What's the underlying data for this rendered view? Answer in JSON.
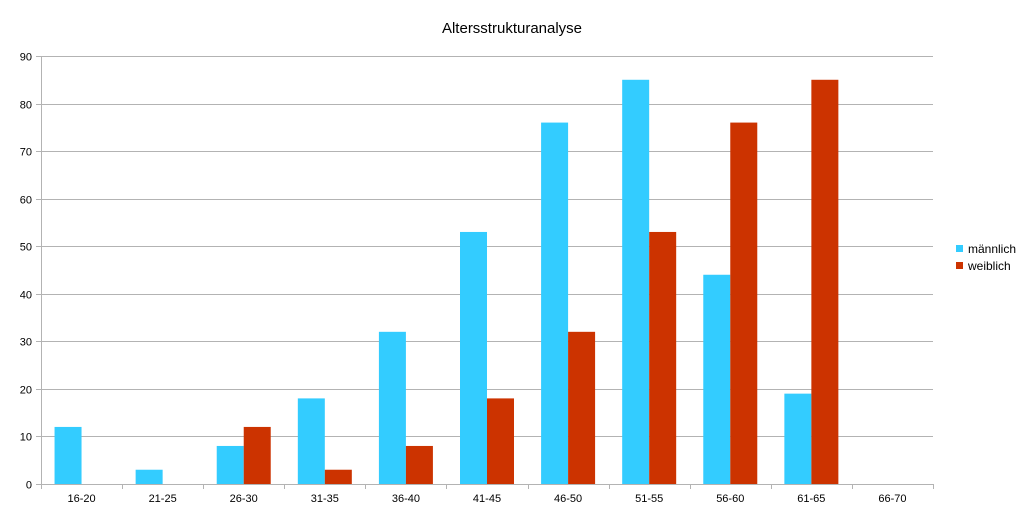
{
  "chart_data": {
    "type": "bar",
    "title": "Altersstrukturanalyse",
    "xlabel": "",
    "ylabel": "",
    "categories": [
      "16-20",
      "21-25",
      "26-30",
      "31-35",
      "36-40",
      "41-45",
      "46-50",
      "51-55",
      "56-60",
      "61-65",
      "66-70"
    ],
    "series": [
      {
        "name": "männlich",
        "color": "#33ccff",
        "values": [
          12,
          3,
          8,
          18,
          32,
          53,
          76,
          85,
          44,
          19,
          0
        ]
      },
      {
        "name": "weiblich",
        "color": "#cc3300",
        "values": [
          0,
          0,
          12,
          3,
          8,
          18,
          32,
          53,
          76,
          85,
          0
        ]
      }
    ],
    "ylim": [
      0,
      90
    ],
    "yticks": [
      0,
      10,
      20,
      30,
      40,
      50,
      60,
      70,
      80,
      90
    ],
    "grid": true,
    "legend_position": "right"
  }
}
